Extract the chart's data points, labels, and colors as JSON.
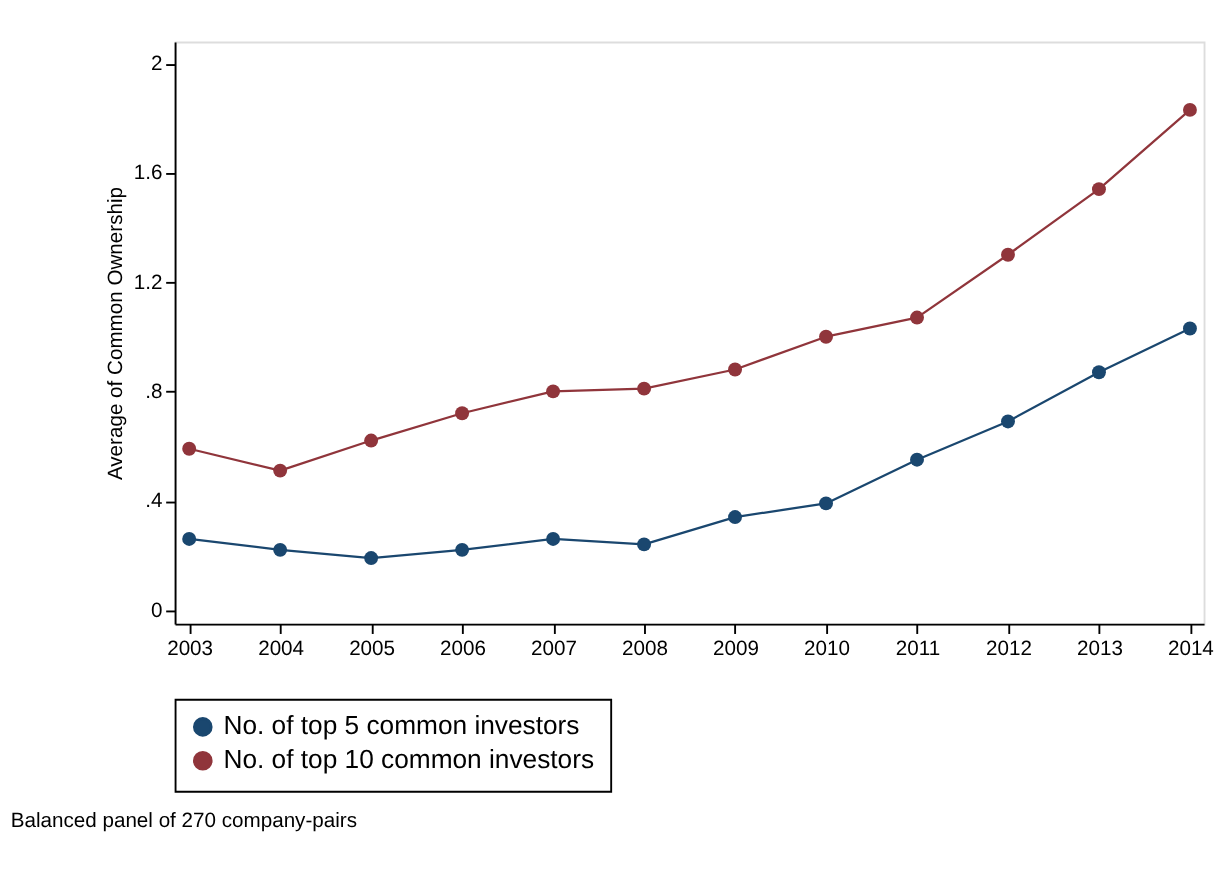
{
  "chart_data": {
    "type": "line",
    "ylabel": "Average of Common Ownership",
    "x": [
      2003,
      2004,
      2005,
      2006,
      2007,
      2008,
      2009,
      2010,
      2011,
      2012,
      2013,
      2014
    ],
    "xlim": [
      2002.84,
      2014.15
    ],
    "xticks": [
      2003,
      2004,
      2005,
      2006,
      2007,
      2008,
      2009,
      2010,
      2011,
      2012,
      2013,
      2014
    ],
    "ylim": [
      -0.05,
      2.08
    ],
    "yticks": [
      0,
      {
        "value": 0.4,
        "label": ".4"
      },
      {
        "value": 0.8,
        "label": ".8"
      },
      1.2,
      1.6,
      2
    ],
    "series": [
      {
        "name": "No. of top 5 common investors",
        "color": "#1a476f",
        "values": [
          0.26,
          0.22,
          0.19,
          0.22,
          0.26,
          0.24,
          0.34,
          0.39,
          0.55,
          0.69,
          0.87,
          1.03
        ]
      },
      {
        "name": "No. of top 10 common investors",
        "color": "#90353b",
        "values": [
          0.59,
          0.51,
          0.62,
          0.72,
          0.8,
          0.81,
          0.88,
          1.0,
          1.07,
          1.3,
          1.54,
          1.83
        ]
      }
    ],
    "marker": "circle",
    "line_style": "solid",
    "grid": false,
    "legend": "bottom",
    "annotations": [
      "Balanced panel of 270 company-pairs"
    ]
  }
}
